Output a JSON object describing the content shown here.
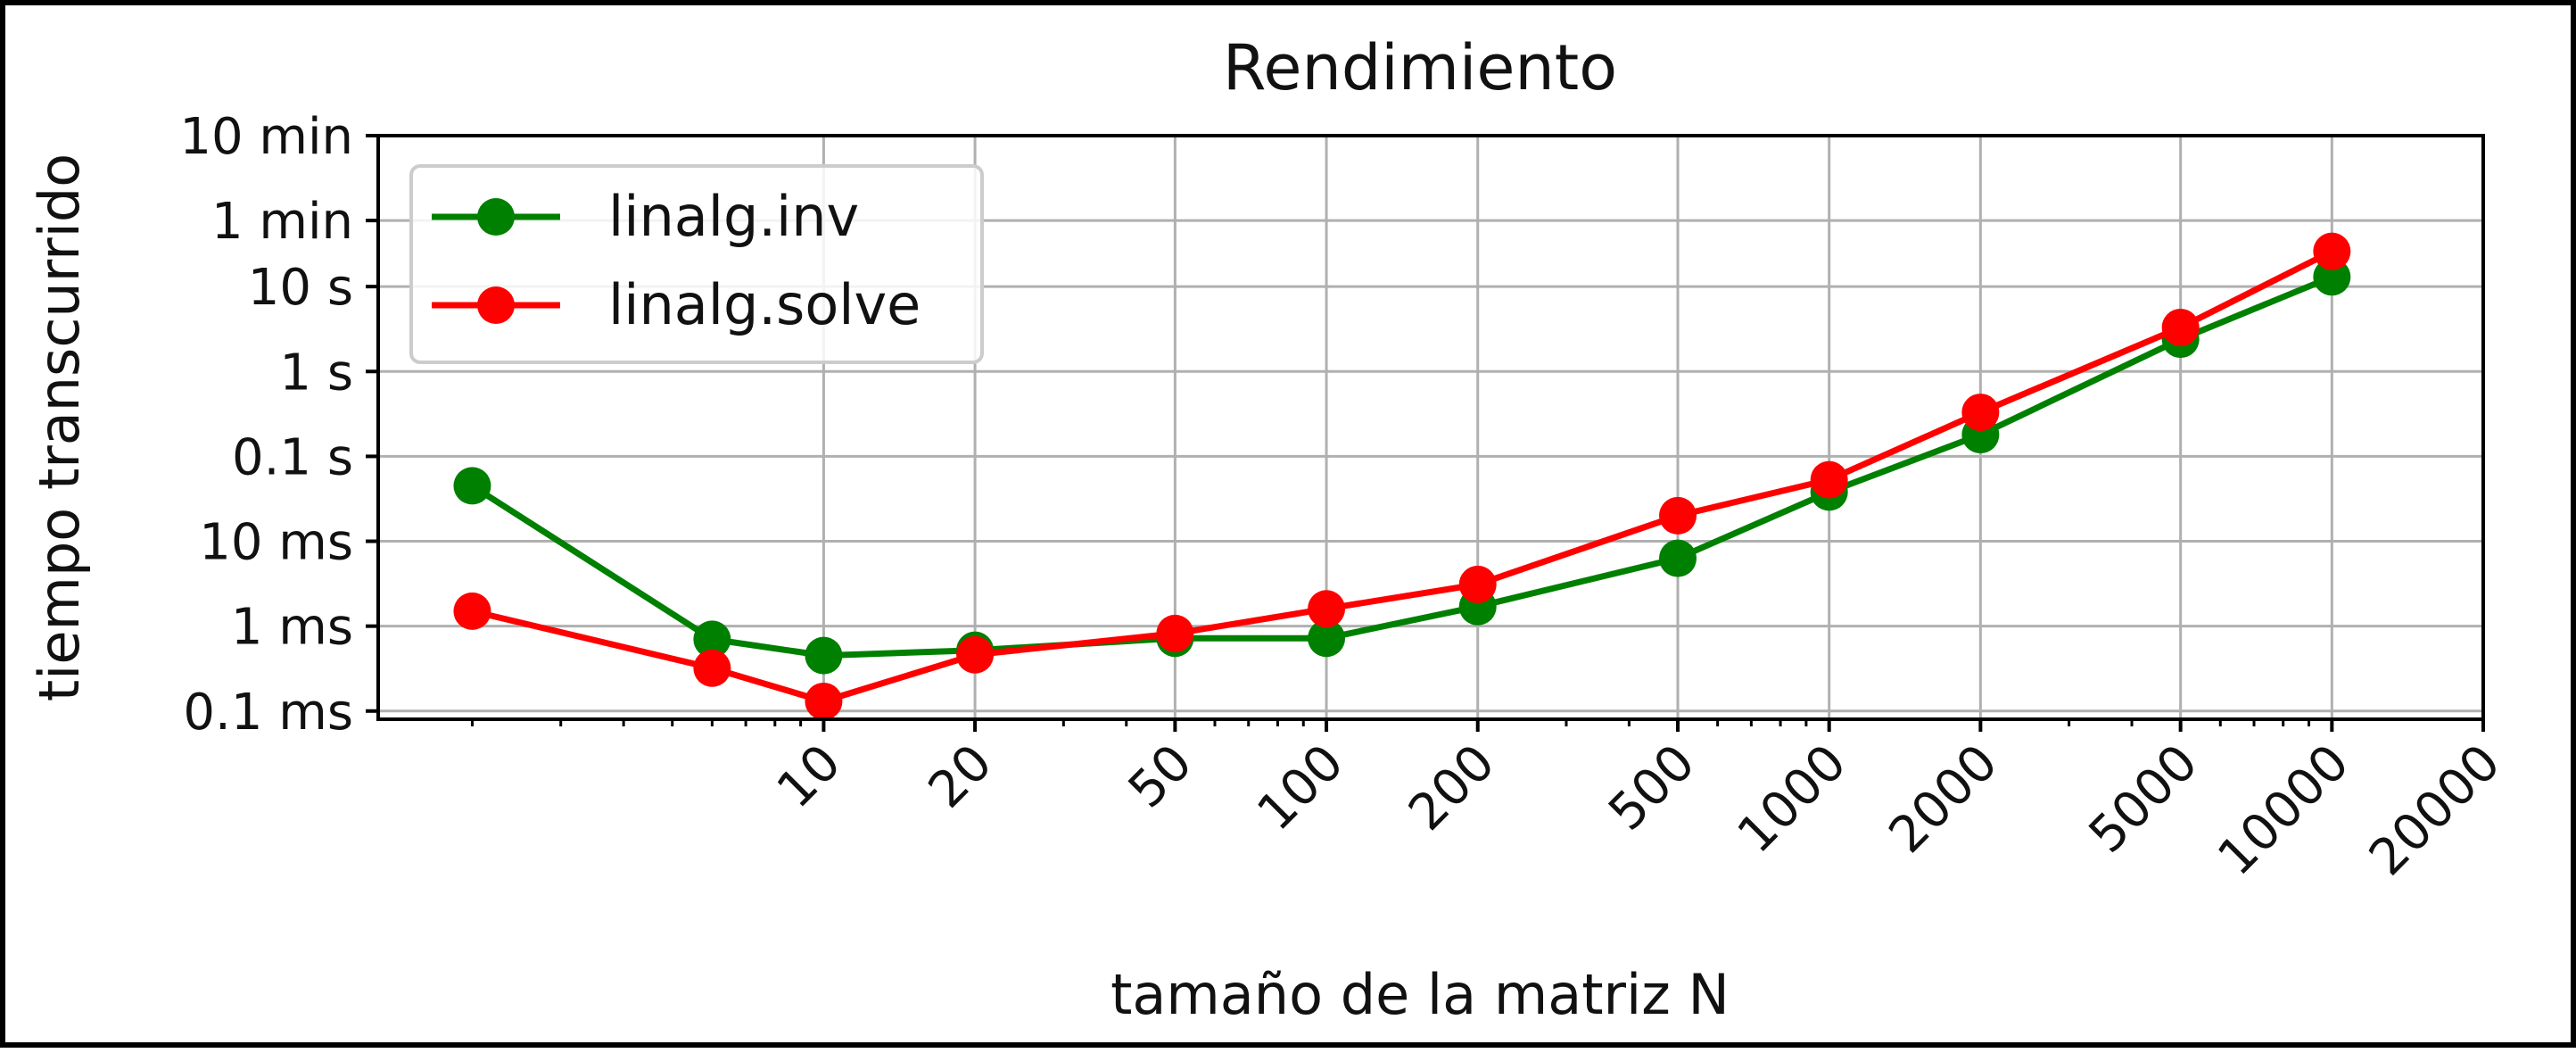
{
  "chart_data": {
    "type": "line",
    "title": "Rendimiento",
    "xlabel": "tamaño de la matriz N",
    "ylabel": "tiempo transcurrido",
    "x_scale": "log",
    "y_scale": "log",
    "xlim": [
      1.3,
      20000
    ],
    "ylim": [
      8e-05,
      600
    ],
    "grid": true,
    "legend_position": "upper-left",
    "x_ticks": [
      10,
      20,
      50,
      100,
      200,
      500,
      1000,
      2000,
      5000,
      10000,
      20000
    ],
    "x_tick_labels": [
      "10",
      "20",
      "50",
      "100",
      "200",
      "500",
      "1000",
      "2000",
      "5000",
      "10000",
      "20000"
    ],
    "y_ticks": [
      0.0001,
      0.001,
      0.01,
      0.1,
      1,
      10,
      60,
      600
    ],
    "y_tick_labels": [
      "0.1 ms",
      "1 ms",
      "10 ms",
      "0.1 s",
      "1 s",
      "10 s",
      "1 min",
      "10 min"
    ],
    "x": [
      2,
      6,
      10,
      20,
      50,
      100,
      200,
      500,
      1000,
      2000,
      5000,
      10000
    ],
    "series": [
      {
        "name": "linalg.inv",
        "color": "#008000",
        "values": [
          0.045,
          0.0007,
          0.00045,
          0.00052,
          0.00072,
          0.00072,
          0.0017,
          0.0063,
          0.038,
          0.18,
          2.4,
          13
        ]
      },
      {
        "name": "linalg.solve",
        "color": "#ff0000",
        "values": [
          0.0015,
          0.00032,
          0.00013,
          0.00046,
          0.00082,
          0.0016,
          0.0031,
          0.02,
          0.053,
          0.33,
          3.3,
          26
        ]
      }
    ]
  }
}
